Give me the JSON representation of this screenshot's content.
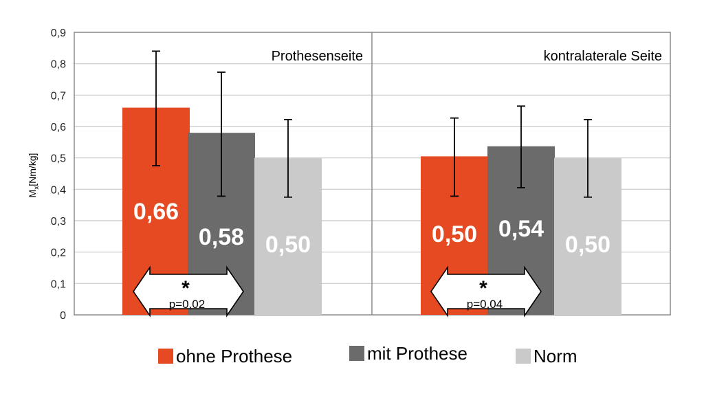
{
  "chart_data": {
    "type": "bar",
    "ylabel_main": "M",
    "ylabel_sub": "x",
    "ylabel_rest": "[Nm/kg]",
    "ylim": [
      0,
      0.9
    ],
    "yticks": [
      "0",
      "0,1",
      "0,2",
      "0,3",
      "0,4",
      "0,5",
      "0,6",
      "0,7",
      "0,8",
      "0,9"
    ],
    "grid": true,
    "legend_position": "bottom",
    "series": [
      {
        "name": "ohne Prothese",
        "color": "#e54a22"
      },
      {
        "name": "mit Prothese",
        "color": "#6b6b6b"
      },
      {
        "name": "Norm",
        "color": "#cacaca"
      }
    ],
    "panels": [
      {
        "title": "Prothesenseite",
        "values": [
          0.66,
          0.58,
          0.5
        ],
        "labels": [
          "0,66",
          "0,58",
          "0,50"
        ],
        "error_low": [
          0.475,
          0.378,
          0.375
        ],
        "error_high": [
          0.84,
          0.773,
          0.622
        ],
        "significance": {
          "marker": "*",
          "text": "p=0,02"
        }
      },
      {
        "title": "kontralaterale Seite",
        "values": [
          0.505,
          0.537,
          0.5
        ],
        "labels": [
          "0,50",
          "0,54",
          "0,50"
        ],
        "error_low": [
          0.378,
          0.405,
          0.375
        ],
        "error_high": [
          0.627,
          0.665,
          0.622
        ],
        "significance": {
          "marker": "*",
          "text": "p=0,04"
        }
      }
    ]
  }
}
